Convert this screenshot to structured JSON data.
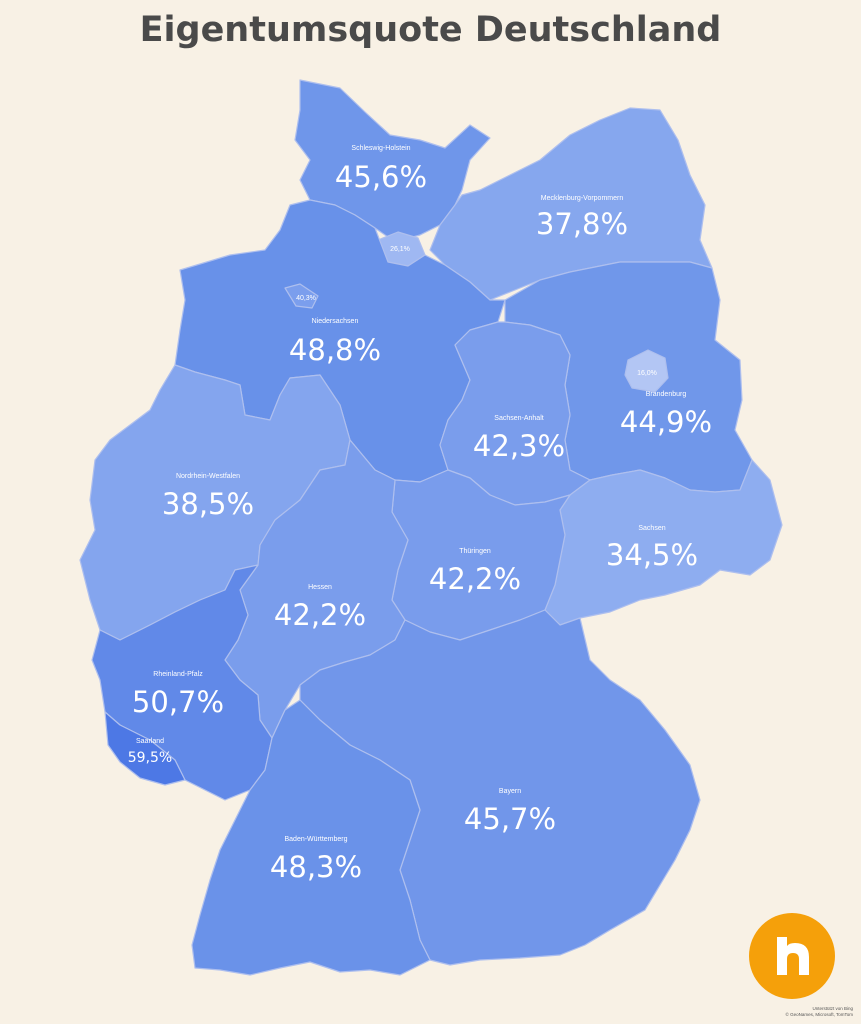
{
  "title": "Eigentumsquote Deutschland",
  "states": [
    {
      "id": "sh",
      "name": "Schleswig-Holstein",
      "value": "45,6%",
      "color": "#6f96ea"
    },
    {
      "id": "hh",
      "name": "",
      "value": "26,1%",
      "color": "#9fb8f2"
    },
    {
      "id": "mv",
      "name": "Mecklenburg-Vorpommern",
      "value": "37,8%",
      "color": "#86a7ee"
    },
    {
      "id": "ni",
      "name": "Niedersachsen",
      "value": "48,8%",
      "color": "#6891e9"
    },
    {
      "id": "hb",
      "name": "",
      "value": "40,3%",
      "color": "#7b9eed"
    },
    {
      "id": "be",
      "name": "",
      "value": "16,0%",
      "color": "#b3c6f4"
    },
    {
      "id": "bb",
      "name": "Brandenburg",
      "value": "44,9%",
      "color": "#7097ea"
    },
    {
      "id": "st",
      "name": "Sachsen-Anhalt",
      "value": "42,3%",
      "color": "#7a9dec"
    },
    {
      "id": "nw",
      "name": "Nordrhein-Westfalen",
      "value": "38,5%",
      "color": "#84a5ee"
    },
    {
      "id": "sn",
      "name": "Sachsen",
      "value": "34,5%",
      "color": "#8eadf0"
    },
    {
      "id": "th",
      "name": "Thüringen",
      "value": "42,2%",
      "color": "#799cec"
    },
    {
      "id": "he",
      "name": "Hessen",
      "value": "42,2%",
      "color": "#7a9dec"
    },
    {
      "id": "rp",
      "name": "Rheinland-Pfalz",
      "value": "50,7%",
      "color": "#6189e8"
    },
    {
      "id": "sl",
      "name": "Saarland",
      "value": "59,5%",
      "color": "#4d78e5"
    },
    {
      "id": "by",
      "name": "Bayern",
      "value": "45,7%",
      "color": "#7196ea"
    },
    {
      "id": "bw",
      "name": "Baden-Württemberg",
      "value": "48,3%",
      "color": "#6a92e9"
    }
  ],
  "logo": {
    "icon": "house-h-icon",
    "color": "#f5a00a"
  },
  "attribution": {
    "line1": "Unterstützt von Bing",
    "line2": "© GeoNames, Microsoft, TomTom"
  }
}
